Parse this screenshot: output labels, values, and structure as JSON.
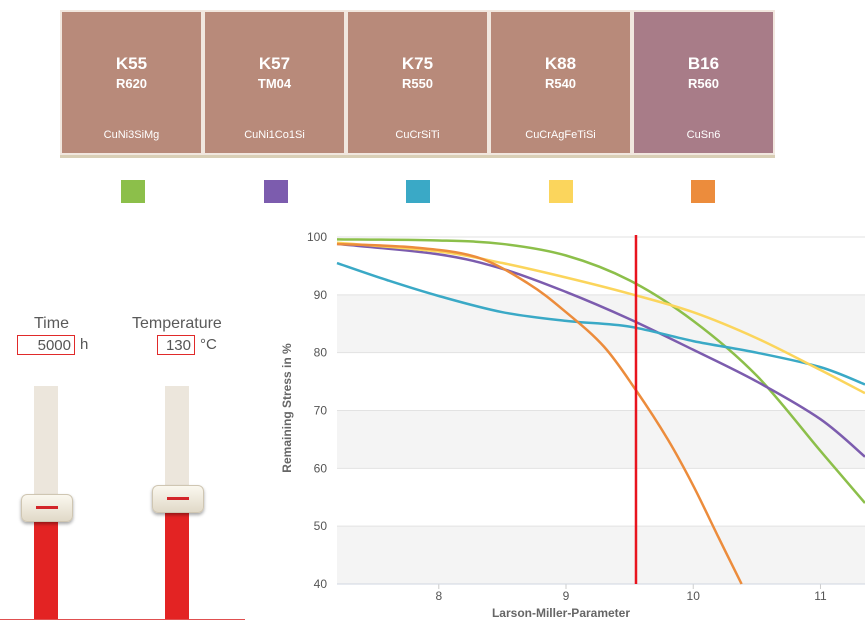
{
  "cards": [
    {
      "code": "K55",
      "sub": "R620",
      "comp": "CuNi3SiMg",
      "color": "#b88a7a"
    },
    {
      "code": "K57",
      "sub": "TM04",
      "comp": "CuNi1Co1Si",
      "color": "#b88a7a"
    },
    {
      "code": "K75",
      "sub": "R550",
      "comp": "CuCrSiTi",
      "color": "#b88a7a"
    },
    {
      "code": "K88",
      "sub": "R540",
      "comp": "CuCrAgFeTiSi",
      "color": "#b88a7a"
    },
    {
      "code": "B16",
      "sub": "R560",
      "comp": "CuSn6",
      "color": "#a87c88"
    }
  ],
  "swatches": [
    {
      "name": "K55",
      "color": "#8cbf4a"
    },
    {
      "name": "K57",
      "color": "#7c5cae"
    },
    {
      "name": "K75",
      "color": "#3aa9c6"
    },
    {
      "name": "K88",
      "color": "#fbd55c"
    },
    {
      "name": "B16",
      "color": "#ec8c3c"
    }
  ],
  "controls": {
    "time_label": "Time",
    "time_value": "5000",
    "time_unit": "h",
    "time_level": 0.48,
    "temp_label": "Temperature",
    "temp_value": "130",
    "temp_unit": "°C",
    "temp_level": 0.52
  },
  "chart_data": {
    "type": "line",
    "xlabel": "Larson-Miller-Parameter",
    "ylabel": "Remaining Stress in %",
    "xlim": [
      7.2,
      11.35
    ],
    "ylim": [
      40,
      100
    ],
    "xticks": [
      8,
      9,
      10,
      11
    ],
    "yticks": [
      40,
      50,
      60,
      70,
      80,
      90,
      100
    ],
    "marker_x": 9.55,
    "marker_color": "#e8141e",
    "series": [
      {
        "color": "#8cbf4a",
        "points": [
          [
            7.2,
            99.6
          ],
          [
            8.0,
            99.4
          ],
          [
            8.5,
            98.8
          ],
          [
            9.0,
            96.8
          ],
          [
            9.5,
            92.5
          ],
          [
            10.0,
            85.5
          ],
          [
            10.5,
            76.0
          ],
          [
            11.0,
            63.0
          ],
          [
            11.35,
            54.0
          ]
        ]
      },
      {
        "color": "#7c5cae",
        "points": [
          [
            7.2,
            98.8
          ],
          [
            8.0,
            97.0
          ],
          [
            8.5,
            94.5
          ],
          [
            9.0,
            90.5
          ],
          [
            9.5,
            85.8
          ],
          [
            10.0,
            80.5
          ],
          [
            10.5,
            75.0
          ],
          [
            11.0,
            68.5
          ],
          [
            11.35,
            62.0
          ]
        ]
      },
      {
        "color": "#3aa9c6",
        "points": [
          [
            7.2,
            95.5
          ],
          [
            7.6,
            92.5
          ],
          [
            8.0,
            89.8
          ],
          [
            8.5,
            87.0
          ],
          [
            9.0,
            85.5
          ],
          [
            9.5,
            84.5
          ],
          [
            10.0,
            82.0
          ],
          [
            10.5,
            80.0
          ],
          [
            11.0,
            77.5
          ],
          [
            11.35,
            74.5
          ]
        ]
      },
      {
        "color": "#fbd55c",
        "points": [
          [
            7.2,
            99.0
          ],
          [
            8.0,
            97.5
          ],
          [
            8.5,
            95.5
          ],
          [
            9.0,
            93.0
          ],
          [
            9.5,
            90.2
          ],
          [
            10.0,
            87.0
          ],
          [
            10.5,
            82.5
          ],
          [
            11.0,
            77.0
          ],
          [
            11.35,
            73.0
          ]
        ]
      },
      {
        "color": "#ec8c3c",
        "points": [
          [
            7.2,
            98.8
          ],
          [
            7.8,
            98.2
          ],
          [
            8.3,
            96.5
          ],
          [
            8.7,
            92.0
          ],
          [
            9.0,
            87.0
          ],
          [
            9.3,
            81.0
          ],
          [
            9.55,
            73.5
          ],
          [
            9.8,
            65.0
          ],
          [
            10.0,
            57.0
          ],
          [
            10.2,
            48.0
          ],
          [
            10.38,
            40.0
          ]
        ]
      }
    ]
  }
}
